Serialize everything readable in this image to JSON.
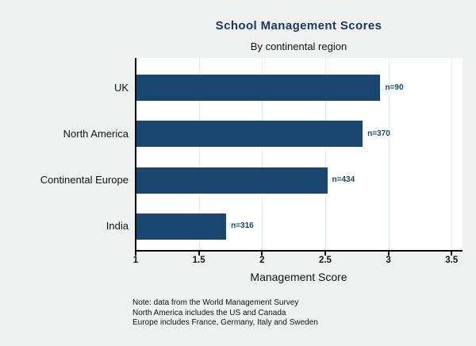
{
  "chart": {
    "title": "School Management Scores",
    "subtitle": "By continental region",
    "xlabel": "Management Score"
  },
  "chart_data": {
    "type": "bar",
    "orientation": "horizontal",
    "title": "School Management Scores",
    "subtitle": "By continental region",
    "xlabel": "Management Score",
    "ylabel": "",
    "categories": [
      "UK",
      "North America",
      "Continental Europe",
      "India"
    ],
    "values": [
      2.93,
      2.79,
      2.51,
      1.71
    ],
    "bar_labels": [
      "n=90",
      "n=370",
      "n=434",
      "n=316"
    ],
    "xticks": [
      1,
      1.5,
      2,
      2.5,
      3,
      3.5
    ],
    "xlim": [
      1,
      3.58
    ],
    "grid": true,
    "legend": "none",
    "notes": [
      "Note: data from the World Management Survey",
      "North America includes the US and Canada",
      "Europe includes France, Germany, Italy and Sweden"
    ],
    "colors": {
      "bar": "#1a476f",
      "bar_label": "#1a476f",
      "grid": "#e7f0f7",
      "background": "#eff1f1",
      "plot_background": "#ffffff",
      "title": "#1e3560",
      "axis": "#000000"
    }
  }
}
